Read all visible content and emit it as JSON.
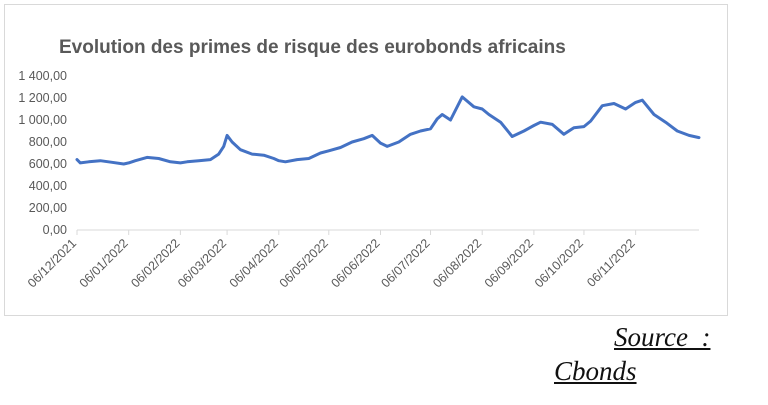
{
  "source": {
    "line1": "Source  :",
    "line2": "Cbonds"
  },
  "chart_data": {
    "type": "line",
    "title": "Evolution des primes de risque des eurobonds africains",
    "xlabel": "",
    "ylabel": "",
    "ylim": [
      0,
      1400
    ],
    "y_ticks": [
      0,
      200,
      400,
      600,
      800,
      1000,
      1200,
      1400
    ],
    "y_tick_labels": [
      "0,00",
      "200,00",
      "400,00",
      "600,00",
      "800,00",
      "1 000,00",
      "1 200,00",
      "1 400,00"
    ],
    "x_tick_labels": [
      "06/12/2021",
      "06/01/2022",
      "06/02/2022",
      "06/03/2022",
      "06/04/2022",
      "06/05/2022",
      "06/06/2022",
      "06/07/2022",
      "06/08/2022",
      "06/09/2022",
      "06/10/2022",
      "06/11/2022"
    ],
    "x_ticks": [
      "2021-12-06",
      "2022-01-06",
      "2022-02-06",
      "2022-03-06",
      "2022-04-06",
      "2022-05-06",
      "2022-06-06",
      "2022-07-06",
      "2022-08-06",
      "2022-09-06",
      "2022-10-06",
      "2022-11-06"
    ],
    "xlim": [
      "2021-12-06",
      "2022-12-14"
    ],
    "grid": false,
    "line_color": "#4472c4",
    "series": [
      {
        "x": [
          "2021-12-06",
          "2021-12-08",
          "2021-12-13",
          "2021-12-20",
          "2021-12-27",
          "2022-01-03",
          "2022-01-06",
          "2022-01-10",
          "2022-01-17",
          "2022-01-24",
          "2022-01-31",
          "2022-02-06",
          "2022-02-10",
          "2022-02-17",
          "2022-02-24",
          "2022-03-01",
          "2022-03-04",
          "2022-03-06",
          "2022-03-09",
          "2022-03-14",
          "2022-03-21",
          "2022-03-28",
          "2022-04-03",
          "2022-04-06",
          "2022-04-10",
          "2022-04-17",
          "2022-04-24",
          "2022-05-01",
          "2022-05-06",
          "2022-05-13",
          "2022-05-20",
          "2022-05-27",
          "2022-06-01",
          "2022-06-06",
          "2022-06-10",
          "2022-06-17",
          "2022-06-24",
          "2022-06-30",
          "2022-07-06",
          "2022-07-10",
          "2022-07-13",
          "2022-07-18",
          "2022-07-25",
          "2022-08-01",
          "2022-08-06",
          "2022-08-10",
          "2022-08-17",
          "2022-08-24",
          "2022-08-31",
          "2022-09-06",
          "2022-09-10",
          "2022-09-17",
          "2022-09-24",
          "2022-09-30",
          "2022-10-06",
          "2022-10-10",
          "2022-10-17",
          "2022-10-24",
          "2022-10-31",
          "2022-11-06",
          "2022-11-10",
          "2022-11-17",
          "2022-11-24",
          "2022-12-01",
          "2022-12-08",
          "2022-12-14"
        ],
        "values": [
          640,
          610,
          620,
          630,
          615,
          600,
          610,
          630,
          660,
          650,
          620,
          610,
          620,
          630,
          640,
          690,
          760,
          860,
          800,
          730,
          690,
          680,
          650,
          630,
          620,
          640,
          650,
          700,
          720,
          750,
          800,
          830,
          860,
          790,
          760,
          800,
          870,
          900,
          920,
          1010,
          1050,
          1000,
          1210,
          1120,
          1100,
          1050,
          980,
          850,
          900,
          950,
          980,
          960,
          870,
          930,
          940,
          990,
          1130,
          1150,
          1100,
          1160,
          1180,
          1050,
          980,
          900,
          860,
          840
        ]
      }
    ]
  }
}
